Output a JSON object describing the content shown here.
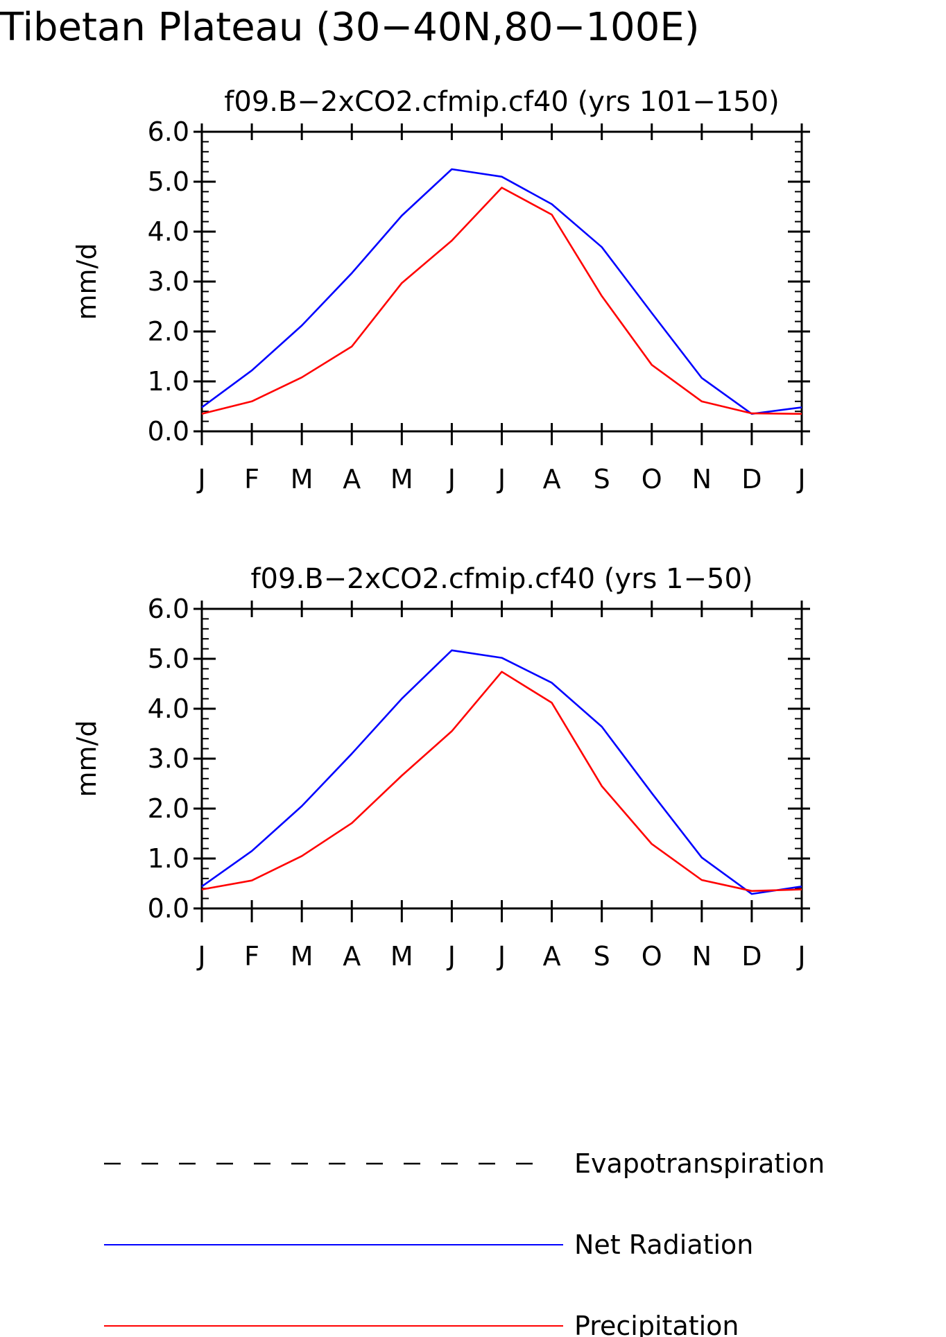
{
  "figure": {
    "title": "Tibetan Plateau (30−40N,80−100E)"
  },
  "colors": {
    "net_radiation": "#0000ff",
    "precipitation": "#ff0000",
    "evapotranspiration": "#000000",
    "axes": "#000000"
  },
  "legend": {
    "items": [
      {
        "label": "Evapotranspiration",
        "style": "dashed",
        "color": "#000000"
      },
      {
        "label": "Net Radiation",
        "style": "solid",
        "color": "#0000ff"
      },
      {
        "label": "Precipitation",
        "style": "solid",
        "color": "#ff0000"
      }
    ]
  },
  "chart_data": [
    {
      "type": "line",
      "title": "f09.B−2xCO2.cfmip.cf40 (yrs 101−150)",
      "xlabel": "",
      "ylabel": "mm/d",
      "categories": [
        "J",
        "F",
        "M",
        "A",
        "M",
        "J",
        "J",
        "A",
        "S",
        "O",
        "N",
        "D",
        "J"
      ],
      "ylim": [
        0,
        6
      ],
      "yticks": [
        "0.0",
        "1.0",
        "2.0",
        "3.0",
        "4.0",
        "5.0",
        "6.0"
      ],
      "series": [
        {
          "name": "Net Radiation",
          "color": "#0000ff",
          "values": [
            0.48,
            1.22,
            2.12,
            3.17,
            4.32,
            5.25,
            5.1,
            4.55,
            3.69,
            2.37,
            1.07,
            0.35,
            0.48
          ]
        },
        {
          "name": "Precipitation",
          "color": "#ff0000",
          "values": [
            0.35,
            0.6,
            1.08,
            1.7,
            2.97,
            3.82,
            4.88,
            4.34,
            2.71,
            1.33,
            0.6,
            0.36,
            0.35
          ]
        }
      ]
    },
    {
      "type": "line",
      "title": "f09.B−2xCO2.cfmip.cf40 (yrs 1−50)",
      "xlabel": "",
      "ylabel": "mm/d",
      "categories": [
        "J",
        "F",
        "M",
        "A",
        "M",
        "J",
        "J",
        "A",
        "S",
        "O",
        "N",
        "D",
        "J"
      ],
      "ylim": [
        0,
        6
      ],
      "yticks": [
        "0.0",
        "1.0",
        "2.0",
        "3.0",
        "4.0",
        "5.0",
        "6.0"
      ],
      "series": [
        {
          "name": "Net Radiation",
          "color": "#0000ff",
          "values": [
            0.44,
            1.15,
            2.05,
            3.1,
            4.2,
            5.17,
            5.02,
            4.52,
            3.64,
            2.31,
            1.02,
            0.29,
            0.44
          ]
        },
        {
          "name": "Precipitation",
          "color": "#ff0000",
          "values": [
            0.38,
            0.56,
            1.05,
            1.71,
            2.66,
            3.55,
            4.74,
            4.12,
            2.45,
            1.29,
            0.57,
            0.35,
            0.38
          ]
        }
      ]
    }
  ]
}
